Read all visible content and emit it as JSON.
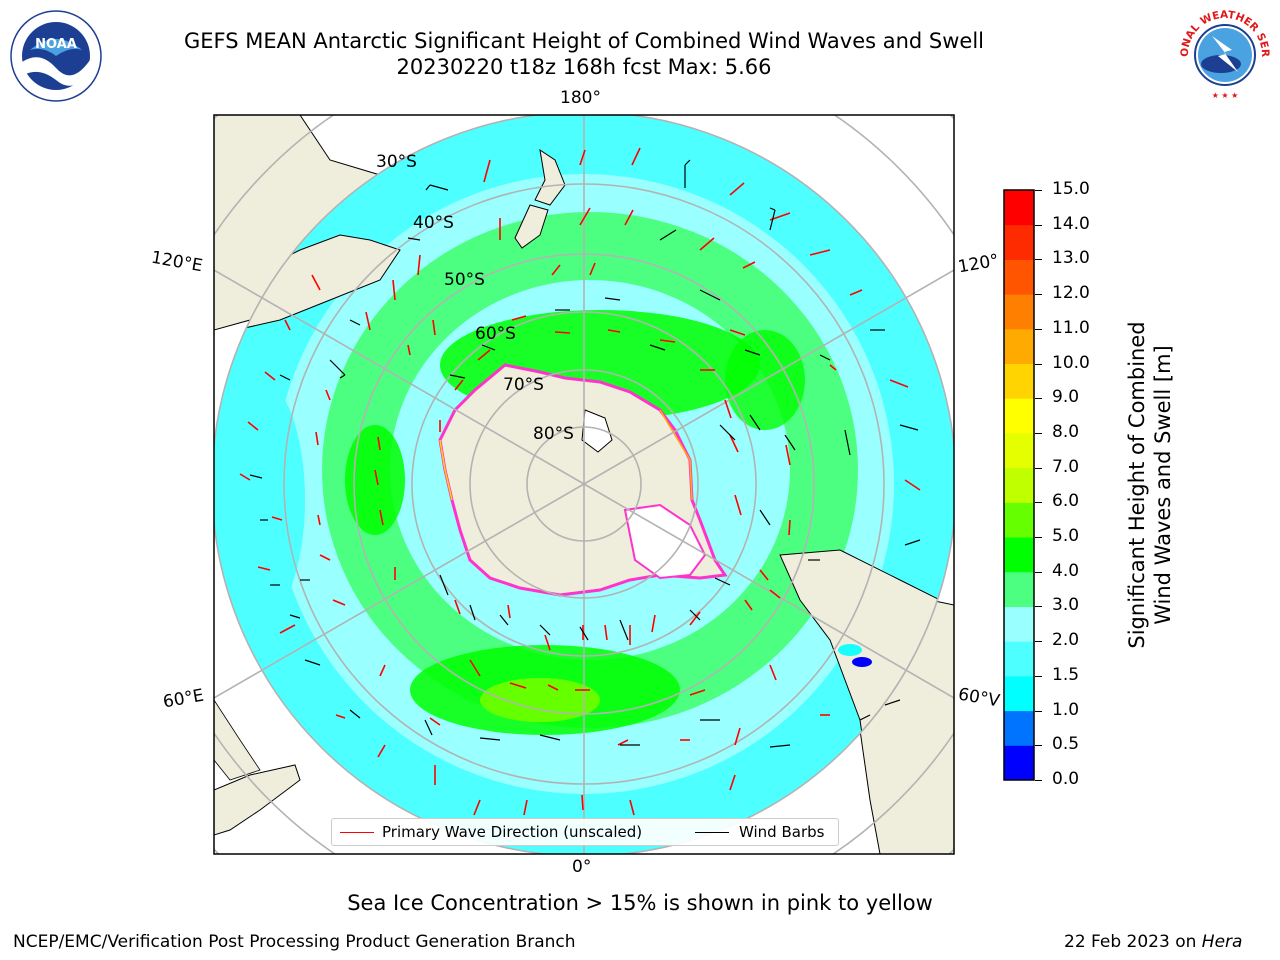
{
  "header": {
    "title": "GEFS MEAN Antarctic Significant Height of Combined Wind Waves and Swell",
    "subtitle": "20230220 t18z 168h fcst   Max: 5.66",
    "left_logo_text": "NOAA",
    "right_logo_text": "NATIONAL WEATHER SERVICE"
  },
  "map": {
    "longitude_labels": {
      "top": "180°",
      "bottom": "0°",
      "upper_left": "120°E",
      "lower_left": "60°E",
      "upper_right": "120°",
      "lower_right": "60°V"
    },
    "latitude_labels": [
      "30°S",
      "40°S",
      "50°S",
      "60°S",
      "70°S",
      "80°S"
    ],
    "colors": {
      "land": "#efeddb",
      "ice_edge": "#ff33cc",
      "wave_arrow": "#ff0000",
      "wind_barb": "#000000"
    }
  },
  "legend": {
    "primary_wave_direction": "Primary Wave Direction (unscaled)",
    "wind_barbs": "Wind Barbs"
  },
  "colorbar": {
    "label_line1": "Significant Height of Combined",
    "label_line2": "Wind Waves and Swell [m]",
    "ticks": [
      "15.0",
      "14.0",
      "13.0",
      "12.0",
      "11.0",
      "10.0",
      "9.0",
      "8.0",
      "7.0",
      "6.0",
      "5.0",
      "4.0",
      "3.0",
      "2.0",
      "1.5",
      "1.0",
      "0.5",
      "0.0"
    ],
    "colors": [
      "#0000ff",
      "#0073ff",
      "#00ffff",
      "#4dffff",
      "#99ffff",
      "#4dff80",
      "#00ff00",
      "#66ff00",
      "#bfff00",
      "#e5ff00",
      "#ffff00",
      "#ffd400",
      "#ffaa00",
      "#ff7f00",
      "#ff5500",
      "#ff2b00",
      "#ff0000"
    ]
  },
  "caption": "Sea Ice Concentration > 15% is shown in pink to yellow",
  "footer": {
    "left": "NCEP/EMC/Verification Post Processing Product Generation Branch",
    "right_date": "22 Feb 2023 on ",
    "right_machine": "Hera"
  }
}
